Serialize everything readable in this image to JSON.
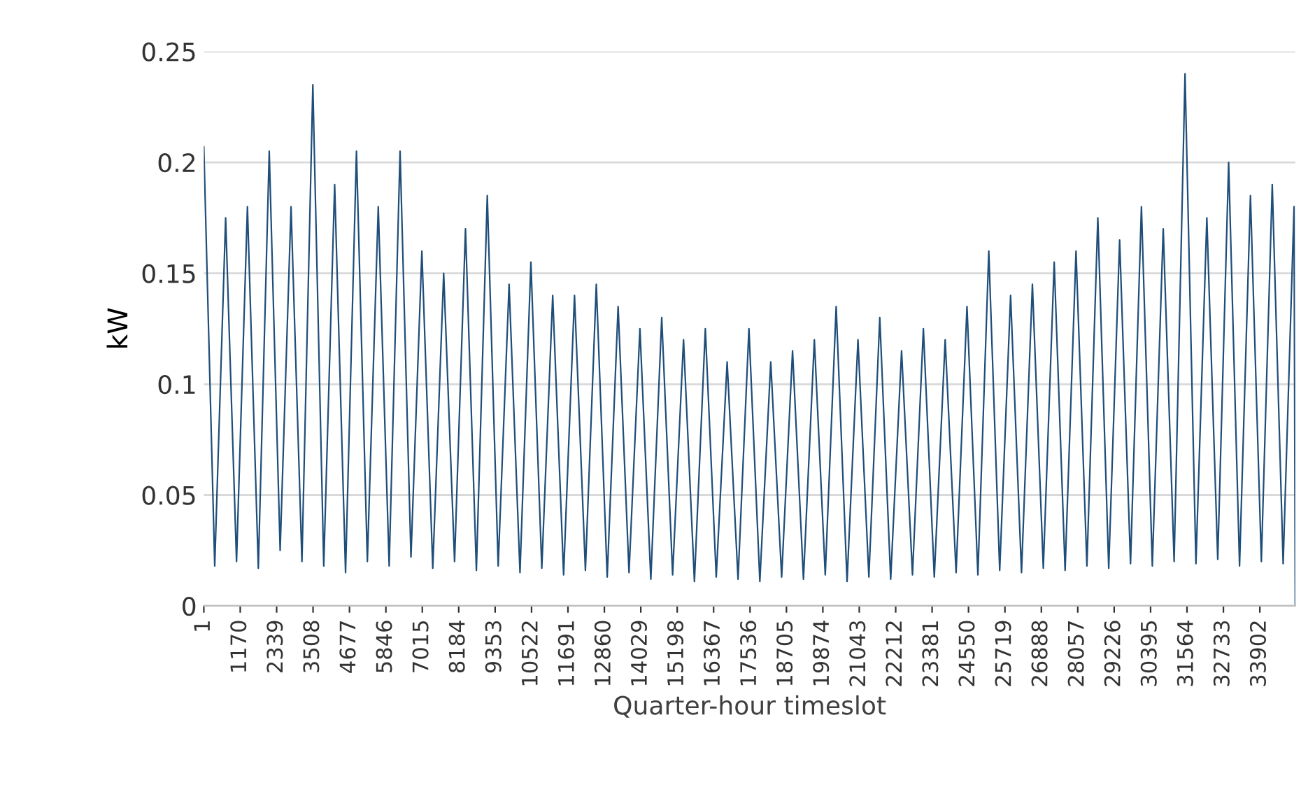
{
  "chart_data": {
    "type": "line",
    "xlabel": "Quarter-hour timeslot",
    "ylabel": "kW",
    "x": [
      1,
      351,
      701,
      1051,
      1401,
      1751,
      2101,
      2451,
      2801,
      3151,
      3501,
      3851,
      4201,
      4551,
      4901,
      5251,
      5601,
      5951,
      6301,
      6651,
      7001,
      7351,
      7701,
      8051,
      8401,
      8751,
      9101,
      9451,
      9801,
      10151,
      10501,
      10851,
      11201,
      11551,
      11901,
      12251,
      12601,
      12951,
      13301,
      13651,
      14001,
      14351,
      14701,
      15051,
      15401,
      15751,
      16101,
      16451,
      16801,
      17151,
      17501,
      17851,
      18201,
      18551,
      18901,
      19251,
      19601,
      19951,
      20301,
      20651,
      21001,
      21351,
      21701,
      22051,
      22401,
      22751,
      23101,
      23451,
      23801,
      24151,
      24501,
      24851,
      25201,
      25551,
      25901,
      26251,
      26601,
      26951,
      27301,
      27651,
      28001,
      28351,
      28701,
      29051,
      29401,
      29751,
      30101,
      30451,
      30801,
      31151,
      31501,
      31851,
      32201,
      32551,
      32901,
      33251,
      33601,
      33951,
      34301,
      34651,
      35001,
      35040
    ],
    "series": [
      {
        "color": "#1f4e79",
        "values": [
          0.207,
          0.018,
          0.175,
          0.02,
          0.18,
          0.017,
          0.205,
          0.025,
          0.18,
          0.02,
          0.235,
          0.018,
          0.19,
          0.015,
          0.205,
          0.02,
          0.18,
          0.018,
          0.205,
          0.022,
          0.16,
          0.017,
          0.15,
          0.02,
          0.17,
          0.016,
          0.185,
          0.018,
          0.145,
          0.015,
          0.155,
          0.017,
          0.14,
          0.014,
          0.14,
          0.016,
          0.145,
          0.013,
          0.135,
          0.015,
          0.125,
          0.012,
          0.13,
          0.014,
          0.12,
          0.011,
          0.125,
          0.013,
          0.11,
          0.012,
          0.125,
          0.011,
          0.11,
          0.013,
          0.115,
          0.012,
          0.12,
          0.014,
          0.135,
          0.011,
          0.12,
          0.013,
          0.13,
          0.012,
          0.115,
          0.014,
          0.125,
          0.013,
          0.12,
          0.015,
          0.135,
          0.014,
          0.16,
          0.016,
          0.14,
          0.015,
          0.145,
          0.017,
          0.155,
          0.016,
          0.16,
          0.018,
          0.175,
          0.017,
          0.165,
          0.019,
          0.18,
          0.018,
          0.17,
          0.02,
          0.24,
          0.019,
          0.175,
          0.021,
          0.2,
          0.018,
          0.185,
          0.02,
          0.19,
          0.019,
          0.18,
          0
        ]
      }
    ],
    "xlim": [
      1,
      35040
    ],
    "xticks": [
      1,
      1170,
      2339,
      3508,
      4677,
      5846,
      7015,
      8184,
      9353,
      10522,
      11691,
      12860,
      14029,
      15198,
      16367,
      17536,
      18705,
      19874,
      21043,
      22212,
      23381,
      24550,
      25719,
      26888,
      28057,
      29226,
      30395,
      31564,
      32733,
      33902
    ],
    "ylim": [
      0,
      0.25
    ],
    "yticks": [
      0,
      0.05,
      0.1,
      0.15,
      0.2,
      0.25
    ],
    "grid": "y"
  }
}
